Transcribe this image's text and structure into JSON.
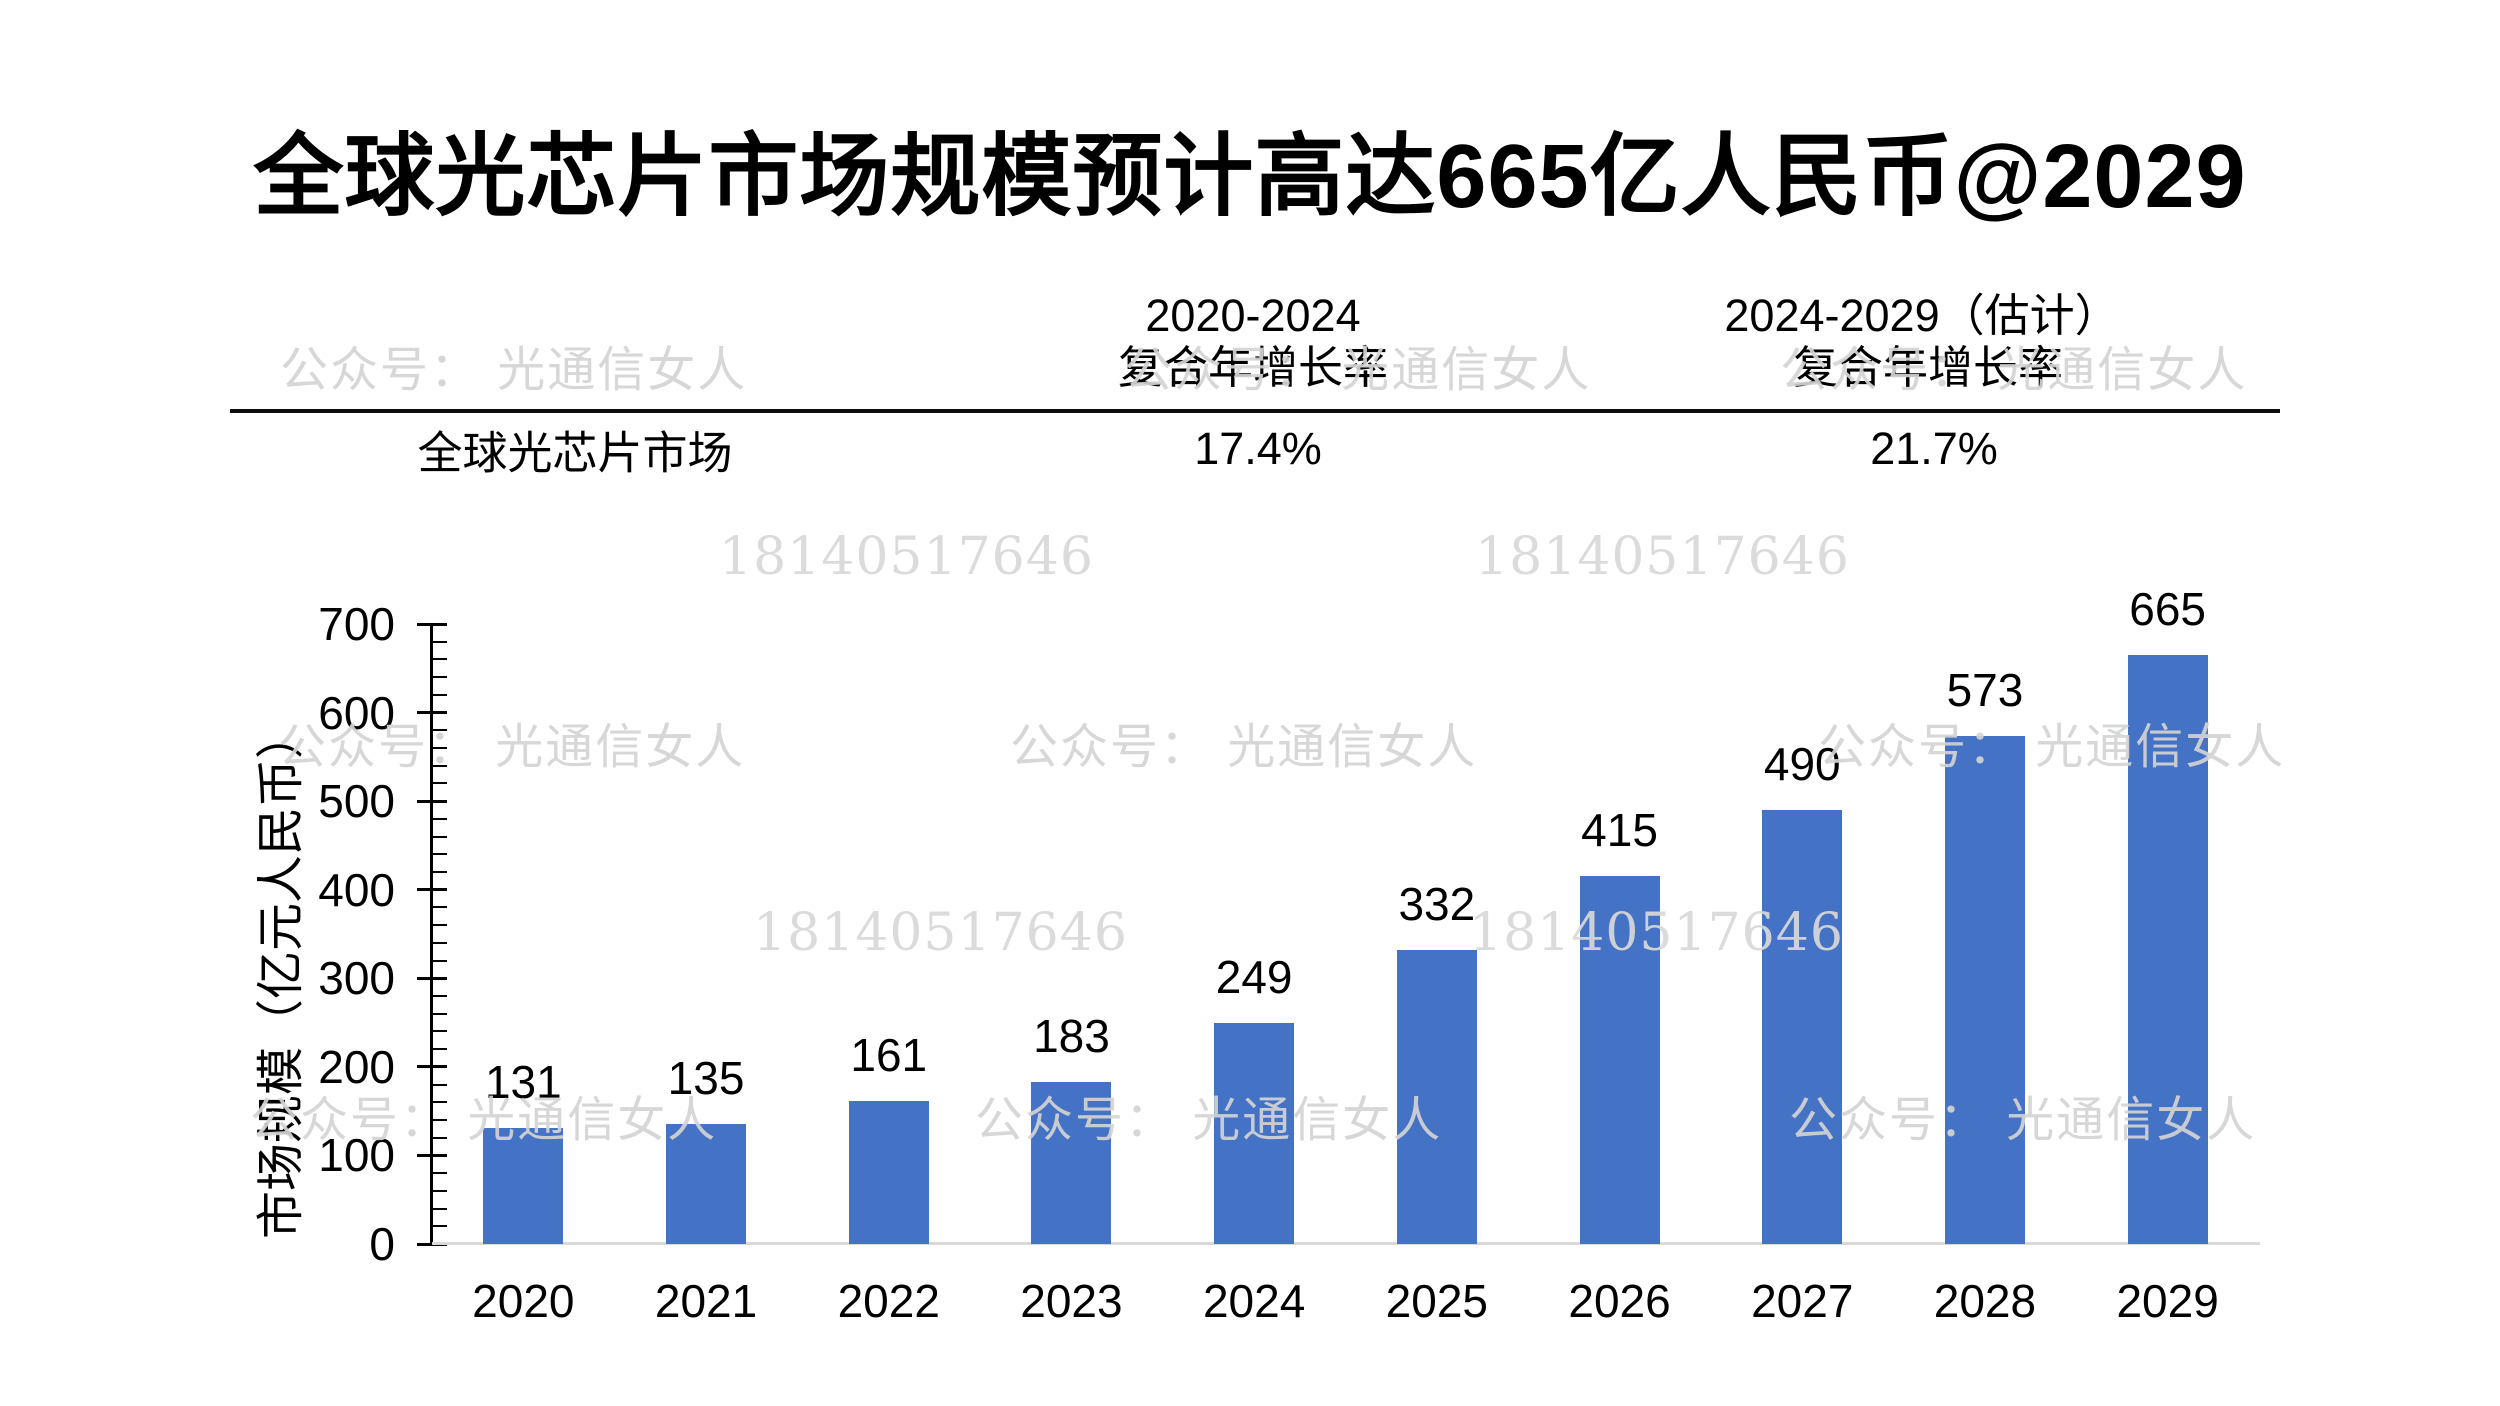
{
  "title": "全球光芯片市场规模预计高达665亿人民币@2029",
  "table": {
    "columns": [
      {
        "line1": "2020-2024",
        "line2": "复合年增长率"
      },
      {
        "line1": "2024-2029（估计）",
        "line2": "复合年增长率"
      }
    ],
    "row": {
      "label": "全球光芯片市场",
      "values": [
        "17.4%",
        "21.7%"
      ]
    }
  },
  "watermarks": {
    "account": "公众号： 光通信女人",
    "phone": "18140517646"
  },
  "chart_data": {
    "type": "bar",
    "categories": [
      "2020",
      "2021",
      "2022",
      "2023",
      "2024",
      "2025",
      "2026",
      "2027",
      "2028",
      "2029"
    ],
    "values": [
      131,
      135,
      161,
      183,
      249,
      332,
      415,
      490,
      573,
      665
    ],
    "title": "",
    "xlabel": "",
    "ylabel": "市场规模（亿元人民币）",
    "ylim": [
      0,
      700
    ],
    "ytick_step": 100,
    "minor_tick_step": 20,
    "yticks": [
      0,
      100,
      200,
      300,
      400,
      500,
      600,
      700
    ],
    "grid": false,
    "legend": false,
    "data_labels": true,
    "bar_color": "#4472C4"
  }
}
